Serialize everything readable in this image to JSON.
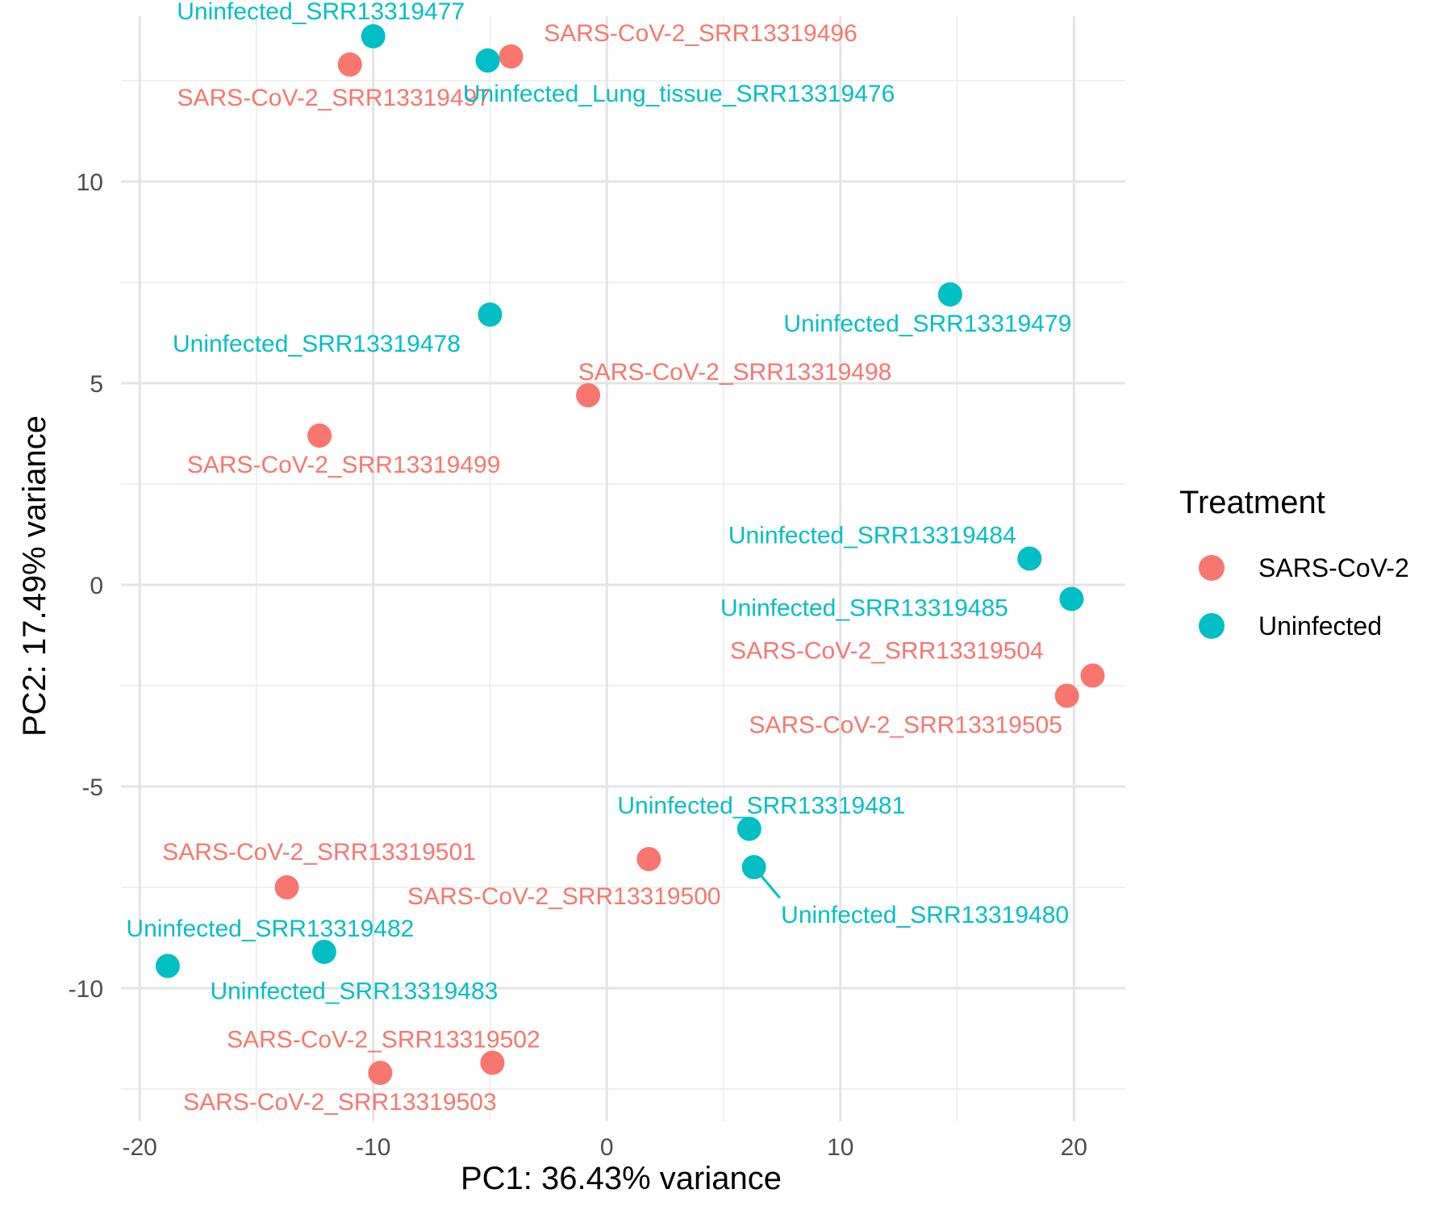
{
  "chart_data": {
    "type": "scatter",
    "xlabel": "PC1: 36.43% variance",
    "ylabel": "PC2: 17.49% variance",
    "xlim": [
      -20.8,
      22.2
    ],
    "ylim": [
      -13.3,
      14.1
    ],
    "xticks": [
      -20,
      -10,
      0,
      10,
      20
    ],
    "yticks": [
      -10,
      -5,
      0,
      5,
      10
    ],
    "x_tick_labels": [
      "-20",
      "-10",
      "0",
      "10",
      "20"
    ],
    "y_tick_labels": [
      "-10",
      "-5",
      "0",
      "5",
      "10"
    ],
    "grid": true,
    "legend": {
      "title": "Treatment",
      "position": "right",
      "entries": [
        {
          "name": "SARS-CoV-2",
          "color": "#F8766D"
        },
        {
          "name": "Uninfected",
          "color": "#00BFC4"
        }
      ]
    },
    "series": [
      {
        "name": "SARS-CoV-2",
        "color": "#F8766D",
        "points": [
          {
            "x": -11.0,
            "y": 12.9,
            "label": "SARS-CoV-2_SRR13319497"
          },
          {
            "x": -4.1,
            "y": 13.1,
            "label": "SARS-CoV-2_SRR13319496"
          },
          {
            "x": -0.8,
            "y": 4.7,
            "label": "SARS-CoV-2_SRR13319498"
          },
          {
            "x": -12.3,
            "y": 3.7,
            "label": "SARS-CoV-2_SRR13319499"
          },
          {
            "x": 20.8,
            "y": -2.25,
            "label": "SARS-CoV-2_SRR13319504"
          },
          {
            "x": 19.7,
            "y": -2.75,
            "label": "SARS-CoV-2_SRR13319505"
          },
          {
            "x": 1.8,
            "y": -6.8,
            "label": "SARS-CoV-2_SRR13319500"
          },
          {
            "x": -13.7,
            "y": -7.5,
            "label": "SARS-CoV-2_SRR13319501"
          },
          {
            "x": -9.7,
            "y": -12.1,
            "label": "SARS-CoV-2_SRR13319503"
          },
          {
            "x": -4.9,
            "y": -11.85,
            "label": "SARS-CoV-2_SRR13319502"
          }
        ]
      },
      {
        "name": "Uninfected",
        "color": "#00BFC4",
        "points": [
          {
            "x": -10.0,
            "y": 13.6,
            "label": "Uninfected_SRR13319477"
          },
          {
            "x": -5.1,
            "y": 13.0,
            "label": "Uninfected_Lung_tissue_SRR13319476"
          },
          {
            "x": -5.0,
            "y": 6.7,
            "label": "Uninfected_SRR13319478"
          },
          {
            "x": 14.7,
            "y": 7.2,
            "label": "Uninfected_SRR13319479"
          },
          {
            "x": 18.1,
            "y": 0.65,
            "label": "Uninfected_SRR13319484"
          },
          {
            "x": 19.9,
            "y": -0.35,
            "label": "Uninfected_SRR13319485"
          },
          {
            "x": 6.1,
            "y": -6.05,
            "label": "Uninfected_SRR13319481"
          },
          {
            "x": 6.3,
            "y": -7.0,
            "label": "Uninfected_SRR13319480"
          },
          {
            "x": -12.1,
            "y": -9.1,
            "label": "Uninfected_SRR13319482"
          },
          {
            "x": -18.8,
            "y": -9.45,
            "label": "Uninfected_SRR13319483"
          }
        ]
      }
    ]
  }
}
